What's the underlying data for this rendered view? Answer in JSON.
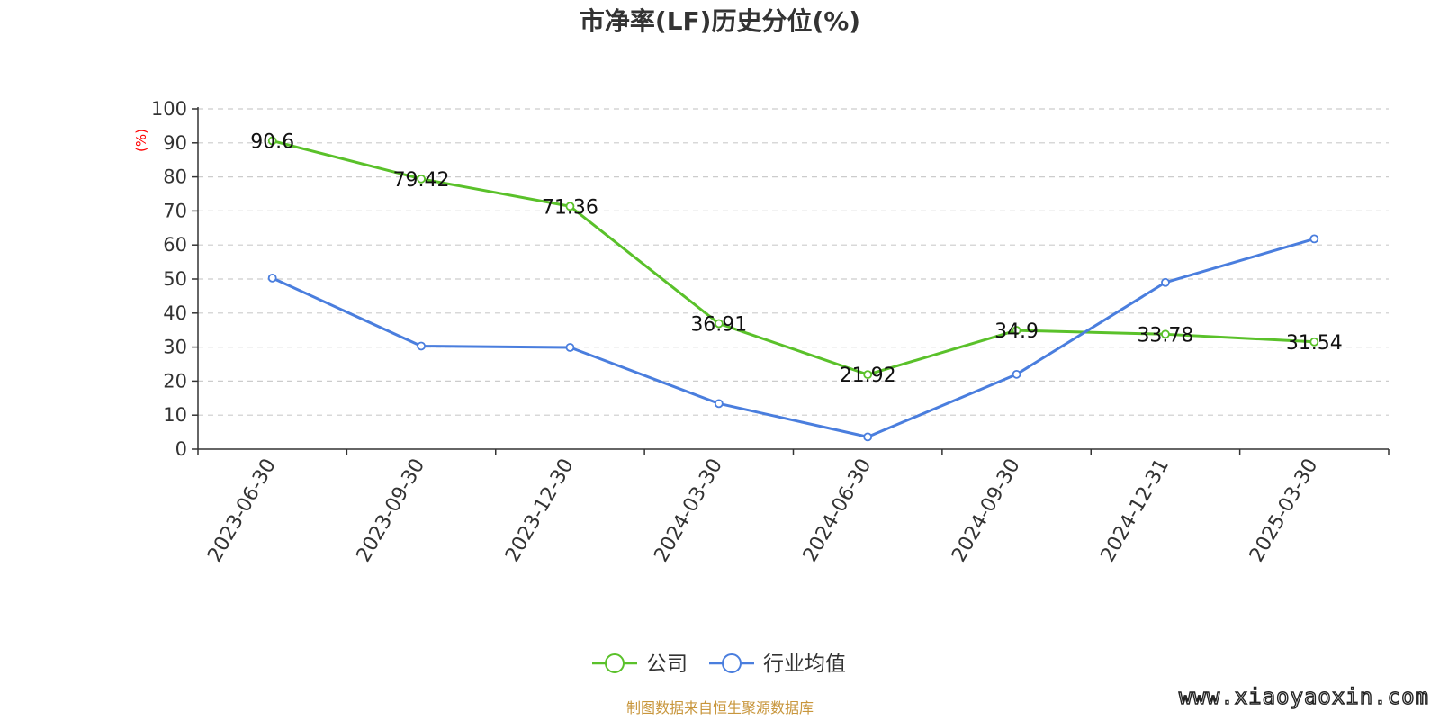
{
  "chart_data": {
    "type": "line",
    "title": "市净率(LF)历史分位(%)",
    "ylabel": "(%)",
    "ylim": [
      0,
      100
    ],
    "yticks": [
      "0",
      "10",
      "20",
      "30",
      "40",
      "50",
      "60",
      "70",
      "80",
      "90",
      "100"
    ],
    "categories": [
      "2023-06-30",
      "2023-09-30",
      "2023-12-30",
      "2024-03-30",
      "2024-06-30",
      "2024-09-30",
      "2024-12-31",
      "2025-03-30"
    ],
    "grid": "horizontal dashed",
    "legend_position": "bottom-center",
    "series": [
      {
        "name": "公司",
        "color": "#5ac12a",
        "values": [
          90.6,
          79.42,
          71.36,
          36.91,
          21.92,
          34.9,
          33.78,
          31.54
        ],
        "labels": [
          "90.6",
          "79.42",
          "71.36",
          "36.91",
          "21.92",
          "34.9",
          "33.78",
          "31.54"
        ]
      },
      {
        "name": "行业均值",
        "color": "#4a7ede",
        "values": [
          50.3,
          30.3,
          29.9,
          13.4,
          3.6,
          22.0,
          49.0,
          61.8
        ]
      }
    ]
  },
  "footer": {
    "source": "制图数据来自恒生聚源数据库",
    "watermark": "www.xiaoyaoxin.com"
  }
}
